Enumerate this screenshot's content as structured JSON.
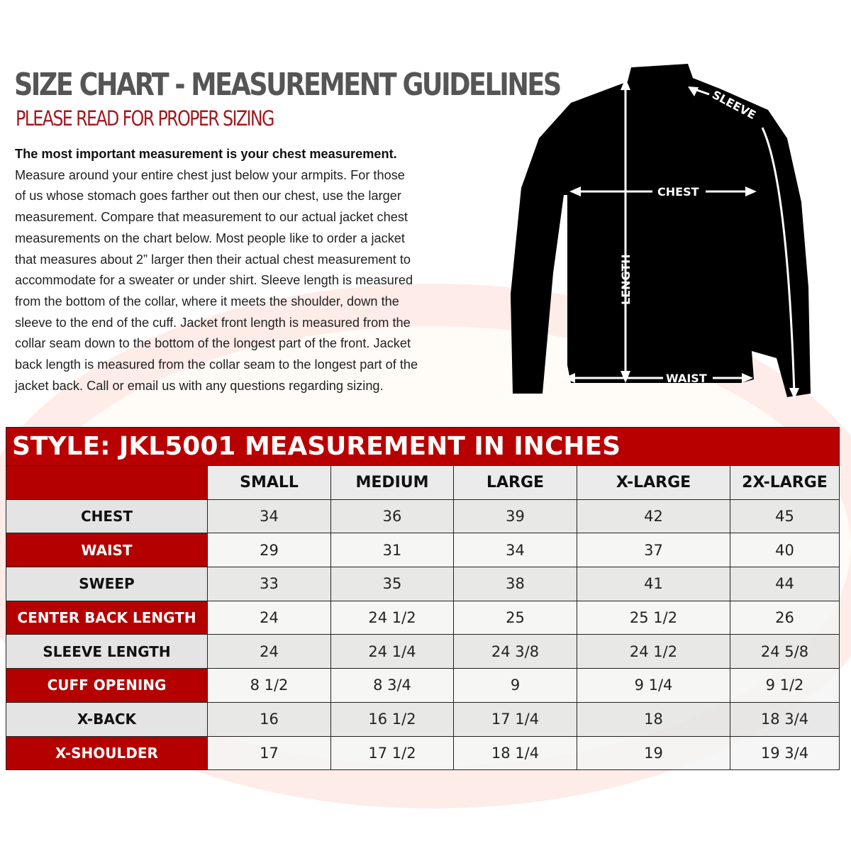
{
  "header": {
    "title": "SIZE CHART - MEASUREMENT GUIDELINES",
    "subtitle": "PLEASE READ FOR PROPER SIZING"
  },
  "intro": {
    "lead": "The most important measurement is your chest measurement.",
    "lines": [
      "Measure around your entire chest just below your armpits.  For those",
      "of us whose stomach goes farther out then our chest, use the larger",
      "measurement. Compare that measurement to our actual jacket chest",
      "measurements on the chart below. Most people like to order a jacket",
      "that measures about 2” larger then their actual chest measurement to",
      "accommodate for a sweater or under shirt. Sleeve length is measured",
      "from the bottom of the collar, where it meets the shoulder, down the",
      "sleeve to the end of the cuff.  Jacket front length is measured from the",
      "collar seam down to the bottom of the longest part of the front. Jacket",
      "back length is measured from the collar seam to the longest part of the",
      "jacket back.  Call or email us with any questions regarding sizing."
    ]
  },
  "diagram": {
    "labels": {
      "sleeve": "SLEEVE",
      "chest": "CHEST",
      "length": "LENGTH",
      "waist": "WAIST"
    }
  },
  "table": {
    "title": "STYLE: JKL5001 MEASUREMENT IN INCHES",
    "columns": [
      "SMALL",
      "MEDIUM",
      "LARGE",
      "X-LARGE",
      "2X-LARGE"
    ],
    "rows": [
      {
        "label": "CHEST",
        "values": [
          "34",
          "36",
          "39",
          "42",
          "45"
        ]
      },
      {
        "label": "WAIST",
        "values": [
          "29",
          "31",
          "34",
          "37",
          "40"
        ]
      },
      {
        "label": "SWEEP",
        "values": [
          "33",
          "35",
          "38",
          "41",
          "44"
        ]
      },
      {
        "label": "CENTER BACK LENGTH",
        "values": [
          "24",
          "24 1/2",
          "25",
          "25 1/2",
          "26"
        ]
      },
      {
        "label": "SLEEVE LENGTH",
        "values": [
          "24",
          "24 1/4",
          "24 3/8",
          "24 1/2",
          "24 5/8"
        ]
      },
      {
        "label": "CUFF OPENING",
        "values": [
          "8 1/2",
          "8 3/4",
          "9",
          "9 1/4",
          "9 1/2"
        ]
      },
      {
        "label": "X-BACK",
        "values": [
          "16",
          "16 1/2",
          "17 1/4",
          "18",
          "18 3/4"
        ]
      },
      {
        "label": "X-SHOULDER",
        "values": [
          "17",
          "17 1/2",
          "18 1/4",
          "19",
          "19 3/4"
        ]
      }
    ]
  },
  "colors": {
    "accent": "#b50000",
    "title_gray": "#555555",
    "subtitle_red": "#a31a1f"
  }
}
